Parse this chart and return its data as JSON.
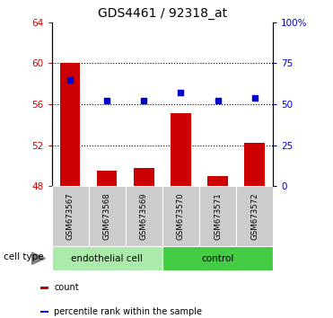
{
  "title": "GDS4461 / 92318_at",
  "samples": [
    "GSM673567",
    "GSM673568",
    "GSM673569",
    "GSM673570",
    "GSM673571",
    "GSM673572"
  ],
  "count_values": [
    60.05,
    49.5,
    49.8,
    55.1,
    49.0,
    52.2
  ],
  "percentile_values": [
    65,
    52,
    52,
    57,
    52,
    54
  ],
  "bar_bottom": 48,
  "ylim_left": [
    48,
    64
  ],
  "ylim_right": [
    0,
    100
  ],
  "yticks_left": [
    48,
    52,
    56,
    60,
    64
  ],
  "yticks_right": [
    0,
    25,
    50,
    75,
    100
  ],
  "ytick_labels_right": [
    "0",
    "25",
    "50",
    "75",
    "100%"
  ],
  "bar_color": "#cc0000",
  "dot_color": "#0000cc",
  "cell_types": [
    {
      "label": "endothelial cell",
      "indices": [
        0,
        1,
        2
      ],
      "color": "#aaeaaa"
    },
    {
      "label": "control",
      "indices": [
        3,
        4,
        5
      ],
      "color": "#44cc44"
    }
  ],
  "cell_type_label": "cell type",
  "legend_items": [
    {
      "color": "#cc0000",
      "label": "count"
    },
    {
      "color": "#0000cc",
      "label": "percentile rank within the sample"
    }
  ],
  "left_tick_color": "#cc0000",
  "right_tick_color": "#0000cc",
  "sample_bg_color": "#cccccc",
  "gridlines_at": [
    52,
    56,
    60
  ],
  "fig_width": 3.71,
  "fig_height": 3.54
}
